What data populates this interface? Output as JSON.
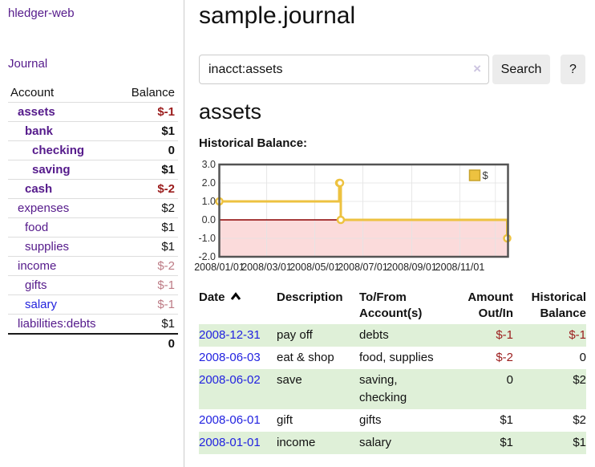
{
  "colors": {
    "link_purple": "#551a8b",
    "link_blue": "#2222dd",
    "negative_strong": "#9b1c1c",
    "negative_soft": "#bd7b85",
    "row_stripe_green": "#dff0d8",
    "series_yellow": "#edc240",
    "chart_negative_region": "#fbdbdb",
    "chart_zero_line": "#8b0000",
    "chart_border": "#545454",
    "chart_grid": "#e4e4e4"
  },
  "sidebar": {
    "brand": "hledger-web",
    "journal_link": "Journal",
    "accounts_table": {
      "account_header": "Account",
      "balance_header": "Balance",
      "rows": [
        {
          "name": "assets",
          "balance": "$-1",
          "level": 0,
          "bold": true,
          "balance_tone": "neg",
          "link_color": "purple"
        },
        {
          "name": "bank",
          "balance": "$1",
          "level": 1,
          "bold": true,
          "balance_tone": "plain",
          "link_color": "purple"
        },
        {
          "name": "checking",
          "balance": "0",
          "level": 2,
          "bold": true,
          "balance_tone": "plain",
          "link_color": "purple"
        },
        {
          "name": "saving",
          "balance": "$1",
          "level": 2,
          "bold": true,
          "balance_tone": "plain",
          "link_color": "purple"
        },
        {
          "name": "cash",
          "balance": "$-2",
          "level": 1,
          "bold": true,
          "balance_tone": "neg",
          "link_color": "purple"
        },
        {
          "name": "expenses",
          "balance": "$2",
          "level": 0,
          "bold": false,
          "balance_tone": "plain",
          "link_color": "purple"
        },
        {
          "name": "food",
          "balance": "$1",
          "level": 1,
          "bold": false,
          "balance_tone": "plain",
          "link_color": "purple"
        },
        {
          "name": "supplies",
          "balance": "$1",
          "level": 1,
          "bold": false,
          "balance_tone": "plain",
          "link_color": "purple"
        },
        {
          "name": "income",
          "balance": "$-2",
          "level": 0,
          "bold": false,
          "balance_tone": "neg-soft",
          "link_color": "purple"
        },
        {
          "name": "gifts",
          "balance": "$-1",
          "level": 1,
          "bold": false,
          "balance_tone": "neg-soft",
          "link_color": "purple"
        },
        {
          "name": "salary",
          "balance": "$-1",
          "level": 1,
          "bold": false,
          "balance_tone": "neg-soft",
          "link_color": "blue"
        },
        {
          "name": "liabilities:debts",
          "balance": "$1",
          "level": 0,
          "bold": false,
          "balance_tone": "plain",
          "link_color": "purple"
        }
      ],
      "total": "0"
    }
  },
  "main": {
    "title": "sample.journal",
    "search": {
      "value": "inacct:assets",
      "clear_icon": "×",
      "button_label": "Search",
      "help_label": "?"
    },
    "heading": "assets",
    "chart_label": "Historical Balance:"
  },
  "chart_data": {
    "type": "line",
    "style": "step",
    "title": "Historical Balance",
    "series": [
      {
        "name": "$",
        "color": "#edc240",
        "points": [
          {
            "date": "2008-01-01",
            "day": 0,
            "value": 1
          },
          {
            "date": "2008-06-01",
            "day": 152,
            "value": 2
          },
          {
            "date": "2008-06-02",
            "day": 153,
            "value": 2
          },
          {
            "date": "2008-06-03",
            "day": 154,
            "value": 0
          },
          {
            "date": "2008-12-31",
            "day": 365,
            "value": -1
          }
        ]
      }
    ],
    "ylim": [
      -2,
      3
    ],
    "yticks": [
      "3.0",
      "2.0",
      "1.0",
      "0.0",
      "-1.0",
      "-2.0"
    ],
    "ytick_values": [
      3,
      2,
      1,
      0,
      -1,
      -2
    ],
    "xticks": [
      {
        "label": "2008/01/01",
        "day": 0
      },
      {
        "label": "2008/03/01",
        "day": 60
      },
      {
        "label": "2008/05/01",
        "day": 121
      },
      {
        "label": "2008/07/01",
        "day": 182
      },
      {
        "label": "2008/09/01",
        "day": 244
      },
      {
        "label": "2008/11/01",
        "day": 305
      }
    ],
    "extra_gridline_days": [
      350
    ],
    "xmax_day": 366,
    "grid": true,
    "negative_region_shaded": true,
    "legend": {
      "position": "top-right",
      "label": "$",
      "swatch_color": "#edc240"
    }
  },
  "register": {
    "headers": [
      {
        "label": "Date",
        "align": "left",
        "sorted": "asc"
      },
      {
        "label": "Description",
        "align": "left"
      },
      {
        "label": "To/From Account(s)",
        "align": "left"
      },
      {
        "label": "Amount Out/In",
        "align": "right"
      },
      {
        "label": "Historical Balance",
        "align": "right"
      }
    ],
    "rows": [
      {
        "date": "2008-12-31",
        "description": "pay off",
        "accounts": "debts",
        "amount": "$-1",
        "amount_tone": "neg",
        "balance": "$-1",
        "balance_tone": "neg"
      },
      {
        "date": "2008-06-03",
        "description": "eat & shop",
        "accounts": "food, supplies",
        "amount": "$-2",
        "amount_tone": "neg",
        "balance": "0",
        "balance_tone": "plain"
      },
      {
        "date": "2008-06-02",
        "description": "save",
        "accounts": "saving, checking",
        "amount": "0",
        "amount_tone": "plain",
        "balance": "$2",
        "balance_tone": "plain"
      },
      {
        "date": "2008-06-01",
        "description": "gift",
        "accounts": "gifts",
        "amount": "$1",
        "amount_tone": "plain",
        "balance": "$2",
        "balance_tone": "plain"
      },
      {
        "date": "2008-01-01",
        "description": "income",
        "accounts": "salary",
        "amount": "$1",
        "amount_tone": "plain",
        "balance": "$1",
        "balance_tone": "plain"
      }
    ]
  }
}
